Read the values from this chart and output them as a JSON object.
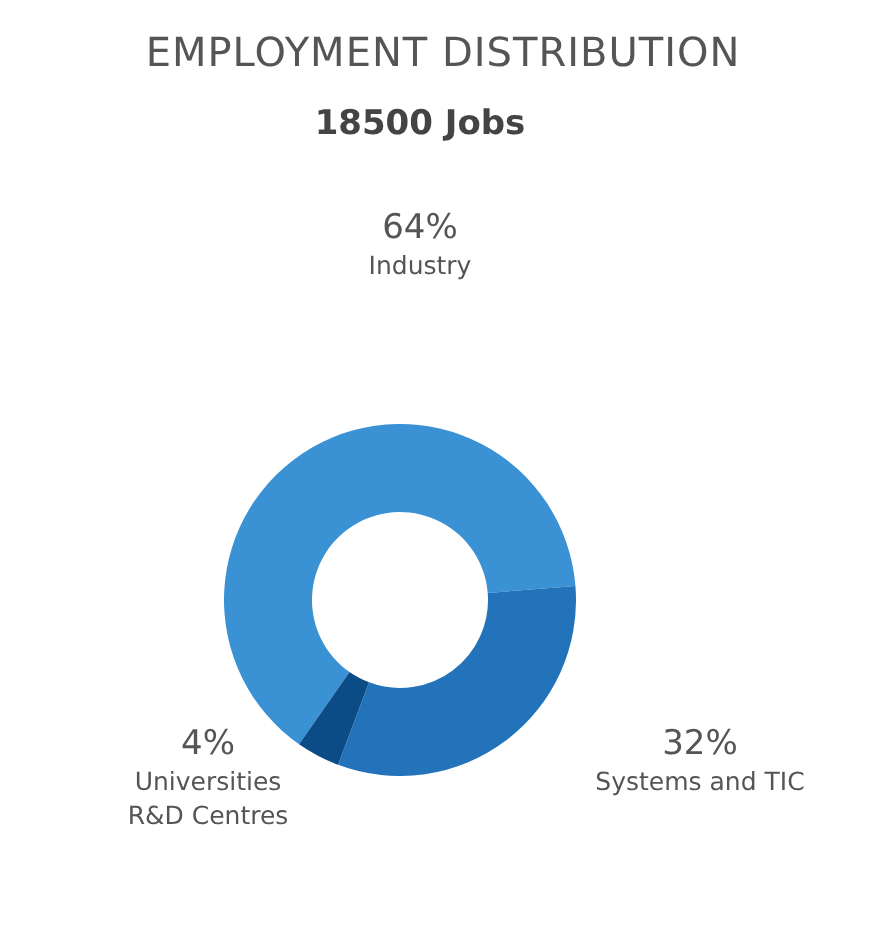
{
  "chart_data": {
    "type": "donut",
    "title": "EMPLOYMENT DISTRIBUTION",
    "subtitle": "18500 Jobs",
    "categories": [
      "Industry",
      "Systems and TIC",
      "Universities\nR&D Centres"
    ],
    "values": [
      64,
      32,
      4
    ],
    "value_labels": [
      "64%",
      "32%",
      "4%"
    ],
    "colors": [
      "#3a91d3",
      "#2373bb",
      "#0c4c86"
    ],
    "legend": false
  }
}
